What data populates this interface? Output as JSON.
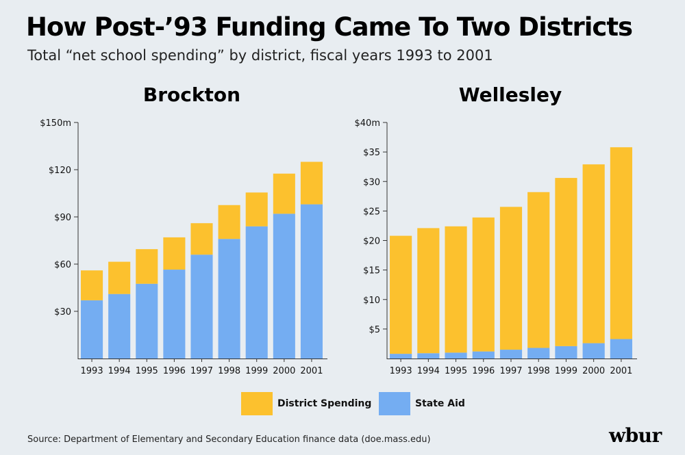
{
  "title": "How Post-’93 Funding Came To Two Districts",
  "subtitle": "Total “net school spending” by district, fiscal years 1993 to 2001",
  "legend": [
    {
      "label": "District Spending",
      "color": "#fcc12e"
    },
    {
      "label": "State Aid",
      "color": "#74adf2"
    }
  ],
  "source": "Source: Department of Elementary and Secondary Education finance data (doe.mass.edu)",
  "logo": "wbur",
  "chart_data": [
    {
      "type": "bar",
      "stacked": true,
      "title": "Brockton",
      "categories": [
        "1993",
        "1994",
        "1995",
        "1996",
        "1997",
        "1998",
        "1999",
        "2000",
        "2001"
      ],
      "series": [
        {
          "name": "State Aid",
          "color": "#74adf2",
          "values": [
            37,
            41,
            47.5,
            56.5,
            66,
            76,
            84,
            92,
            98
          ]
        },
        {
          "name": "District Spending",
          "color": "#fcc12e",
          "values": [
            19,
            20.5,
            22,
            20.5,
            20,
            21.5,
            21.5,
            25.5,
            27
          ]
        }
      ],
      "ylim": [
        0,
        150
      ],
      "yticks": [
        30,
        60,
        90,
        120,
        150
      ],
      "ytick_labels": [
        "$30",
        "$60",
        "$90",
        "$120",
        "$150m"
      ],
      "xlabel": "",
      "ylabel": ""
    },
    {
      "type": "bar",
      "stacked": true,
      "title": "Wellesley",
      "categories": [
        "1993",
        "1994",
        "1995",
        "1996",
        "1997",
        "1998",
        "1999",
        "2000",
        "2001"
      ],
      "series": [
        {
          "name": "State Aid",
          "color": "#74adf2",
          "values": [
            0.8,
            0.9,
            1.0,
            1.2,
            1.5,
            1.8,
            2.1,
            2.6,
            3.3
          ]
        },
        {
          "name": "District Spending",
          "color": "#fcc12e",
          "values": [
            20.0,
            21.2,
            21.4,
            22.7,
            24.2,
            26.4,
            28.5,
            30.3,
            32.5
          ]
        }
      ],
      "ylim": [
        0,
        40
      ],
      "yticks": [
        5,
        10,
        15,
        20,
        25,
        30,
        35,
        40
      ],
      "ytick_labels": [
        "$5",
        "$10",
        "$15",
        "$20",
        "$25",
        "$30",
        "$35",
        "$40m"
      ],
      "xlabel": "",
      "ylabel": ""
    }
  ]
}
